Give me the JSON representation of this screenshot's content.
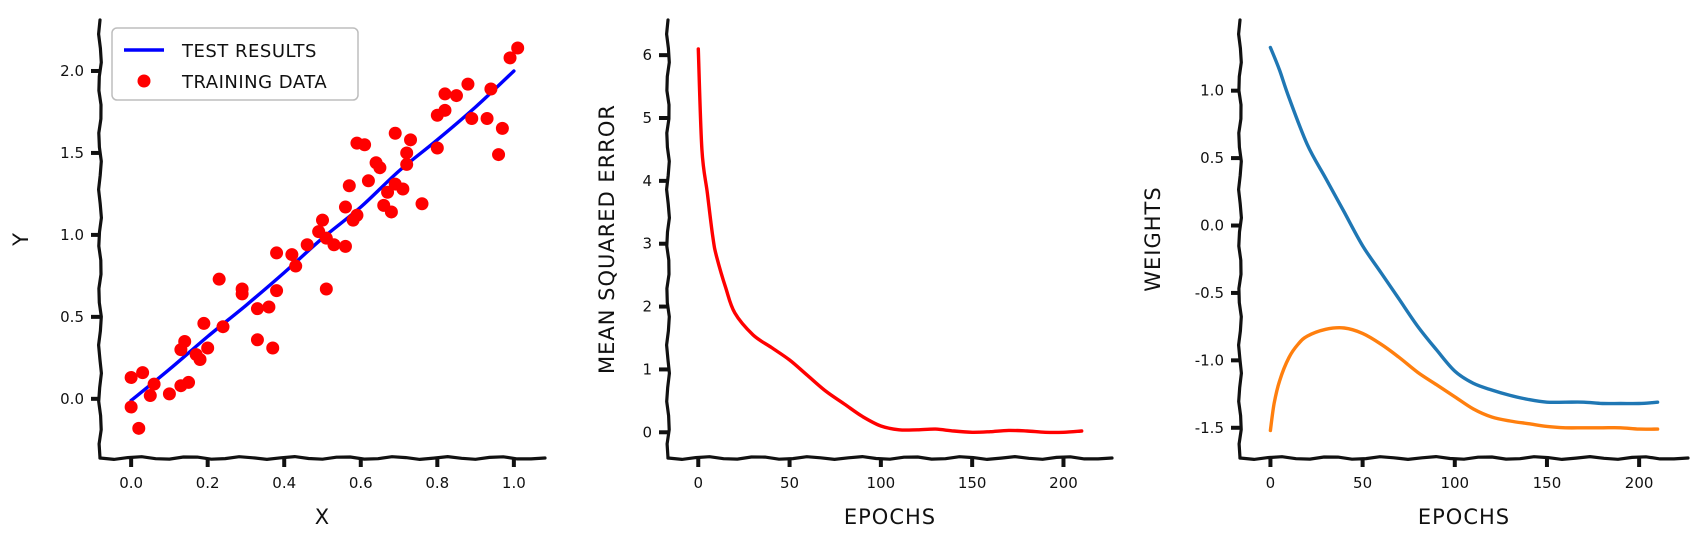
{
  "chart_data": [
    {
      "type": "scatter",
      "xlabel": "x",
      "ylabel": "y",
      "xlim": [
        -0.05,
        1.05
      ],
      "ylim": [
        -0.3,
        2.25
      ],
      "xticks": [
        "0.0",
        "0.2",
        "0.4",
        "0.6",
        "0.8",
        "1.0"
      ],
      "yticks": [
        "0.0",
        "0.5",
        "1.0",
        "1.5",
        "2.0"
      ],
      "legend": {
        "position": "top-left",
        "entries": [
          "Test results",
          "Training data"
        ]
      },
      "series": [
        {
          "name": "Test results",
          "kind": "line",
          "color": "#0000ff",
          "x": [
            0.0,
            0.1,
            0.2,
            0.3,
            0.4,
            0.5,
            0.6,
            0.7,
            0.8,
            0.9,
            1.0
          ],
          "y": [
            -0.01,
            0.18,
            0.38,
            0.57,
            0.77,
            0.98,
            1.17,
            1.39,
            1.58,
            1.78,
            2.0
          ]
        },
        {
          "name": "Training data",
          "kind": "scatter",
          "color": "#ff0000",
          "x": [
            0.0,
            0.0,
            0.02,
            0.03,
            0.05,
            0.06,
            0.1,
            0.13,
            0.13,
            0.14,
            0.15,
            0.17,
            0.18,
            0.19,
            0.2,
            0.23,
            0.24,
            0.29,
            0.29,
            0.33,
            0.33,
            0.36,
            0.37,
            0.38,
            0.38,
            0.42,
            0.43,
            0.46,
            0.49,
            0.5,
            0.51,
            0.51,
            0.53,
            0.56,
            0.56,
            0.57,
            0.58,
            0.59,
            0.59,
            0.61,
            0.62,
            0.64,
            0.65,
            0.66,
            0.67,
            0.68,
            0.69,
            0.69,
            0.71,
            0.72,
            0.72,
            0.73,
            0.76,
            0.8,
            0.8,
            0.82,
            0.82,
            0.85,
            0.88,
            0.89,
            0.93,
            0.94,
            0.96,
            0.97,
            0.99,
            1.01
          ],
          "y": [
            0.13,
            -0.05,
            -0.18,
            0.16,
            0.02,
            0.09,
            0.03,
            0.3,
            0.08,
            0.35,
            0.1,
            0.27,
            0.24,
            0.46,
            0.31,
            0.73,
            0.44,
            0.64,
            0.67,
            0.55,
            0.36,
            0.56,
            0.31,
            0.89,
            0.66,
            0.88,
            0.81,
            0.94,
            1.02,
            1.09,
            0.98,
            0.67,
            0.94,
            0.93,
            1.17,
            1.3,
            1.09,
            1.56,
            1.12,
            1.55,
            1.33,
            1.44,
            1.41,
            1.18,
            1.26,
            1.14,
            1.62,
            1.31,
            1.28,
            1.5,
            1.43,
            1.58,
            1.19,
            1.53,
            1.73,
            1.86,
            1.76,
            1.85,
            1.92,
            1.71,
            1.71,
            1.89,
            1.49,
            1.65,
            2.08,
            2.14
          ]
        }
      ]
    },
    {
      "type": "line",
      "xlabel": "Epochs",
      "ylabel": "Mean Squared Error",
      "xlim": [
        -10,
        220
      ],
      "ylim": [
        -0.25,
        6.4
      ],
      "xticks": [
        "0",
        "50",
        "100",
        "150",
        "200"
      ],
      "yticks": [
        "0",
        "1",
        "2",
        "3",
        "4",
        "5",
        "6"
      ],
      "series": [
        {
          "color": "#ff0000",
          "x": [
            0,
            2,
            5,
            8,
            10,
            15,
            20,
            30,
            40,
            50,
            60,
            70,
            80,
            90,
            100,
            110,
            120,
            130,
            140,
            150,
            160,
            170,
            180,
            190,
            200,
            210
          ],
          "y": [
            6.1,
            4.5,
            3.8,
            3.1,
            2.8,
            2.3,
            1.9,
            1.55,
            1.35,
            1.15,
            0.9,
            0.65,
            0.45,
            0.25,
            0.1,
            0.04,
            0.04,
            0.05,
            0.02,
            0.0,
            0.01,
            0.03,
            0.02,
            0.0,
            0.0,
            0.02
          ]
        }
      ]
    },
    {
      "type": "line",
      "xlabel": "Epochs",
      "ylabel": "Weights",
      "xlim": [
        -10,
        220
      ],
      "ylim": [
        -1.65,
        1.45
      ],
      "xticks": [
        "0",
        "50",
        "100",
        "150",
        "200"
      ],
      "yticks": [
        "1.0",
        "0.5",
        "0.0",
        "-0.5",
        "-1.0",
        "-1.5"
      ],
      "series": [
        {
          "color": "#1f77b4",
          "x": [
            0,
            5,
            10,
            20,
            30,
            40,
            50,
            60,
            70,
            80,
            90,
            100,
            110,
            120,
            130,
            140,
            150,
            160,
            170,
            180,
            190,
            200,
            210
          ],
          "y": [
            1.32,
            1.15,
            0.95,
            0.6,
            0.35,
            0.1,
            -0.15,
            -0.35,
            -0.55,
            -0.75,
            -0.92,
            -1.08,
            -1.17,
            -1.22,
            -1.26,
            -1.29,
            -1.31,
            -1.31,
            -1.31,
            -1.32,
            -1.32,
            -1.32,
            -1.31
          ]
        },
        {
          "color": "#ff7f0e",
          "x": [
            0,
            2,
            5,
            10,
            15,
            20,
            30,
            40,
            50,
            60,
            70,
            80,
            90,
            100,
            110,
            120,
            130,
            140,
            150,
            160,
            170,
            180,
            190,
            200,
            210
          ],
          "y": [
            -1.52,
            -1.32,
            -1.15,
            -0.98,
            -0.88,
            -0.82,
            -0.77,
            -0.76,
            -0.8,
            -0.88,
            -0.98,
            -1.09,
            -1.18,
            -1.27,
            -1.36,
            -1.42,
            -1.45,
            -1.47,
            -1.49,
            -1.5,
            -1.5,
            -1.5,
            -1.5,
            -1.51,
            -1.51
          ]
        }
      ]
    }
  ]
}
